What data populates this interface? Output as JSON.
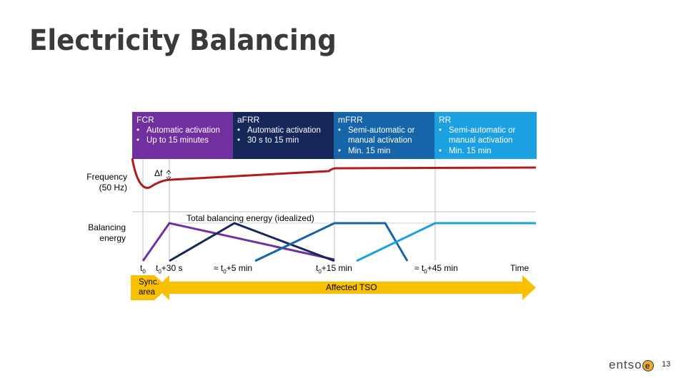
{
  "title": "Electricity Balancing",
  "boxes": [
    {
      "name": "FCR",
      "items": [
        "Automatic activation",
        "Up to 15 minutes"
      ],
      "color": "#7030a0"
    },
    {
      "name": "aFRR",
      "items": [
        "Automatic activation",
        "30 s to 15 min"
      ],
      "color": "#16285a"
    },
    {
      "name": "mFRR",
      "items": [
        "Semi-automatic or manual activation",
        "Min. 15 min"
      ],
      "color": "#1565a8"
    },
    {
      "name": "RR",
      "items": [
        "Semi-automatic or manual activation",
        "Min. 15 min"
      ],
      "color": "#1ba0e2"
    }
  ],
  "labels": {
    "frequency": "Frequency (50 Hz)",
    "balancing": "Balancing energy",
    "delta_f": "Δf",
    "total_energy": "Total balancing energy (idealized)",
    "sync_area": "Sync. area",
    "affected_tso": "Affected TSO"
  },
  "axis": {
    "t0_base": "t",
    "t0_sub": "0",
    "t30_base": "t",
    "t30_sub": "0",
    "t30_suffix": "+30 s",
    "t5_prefix": "≈ t",
    "t5_sub": "0",
    "t5_suffix": "+5 min",
    "t15_base": "t",
    "t15_sub": "0",
    "t15_suffix": "+15 min",
    "t45_prefix": "≈ t",
    "t45_sub": "0",
    "t45_suffix": "+45 min",
    "time": "Time"
  },
  "colors": {
    "frequency_line": "#b01c1c",
    "arrow": "#f9c000",
    "grid": "#bfbfbf"
  },
  "logo": {
    "text": "entso",
    "e": "e"
  },
  "page_number": "13"
}
